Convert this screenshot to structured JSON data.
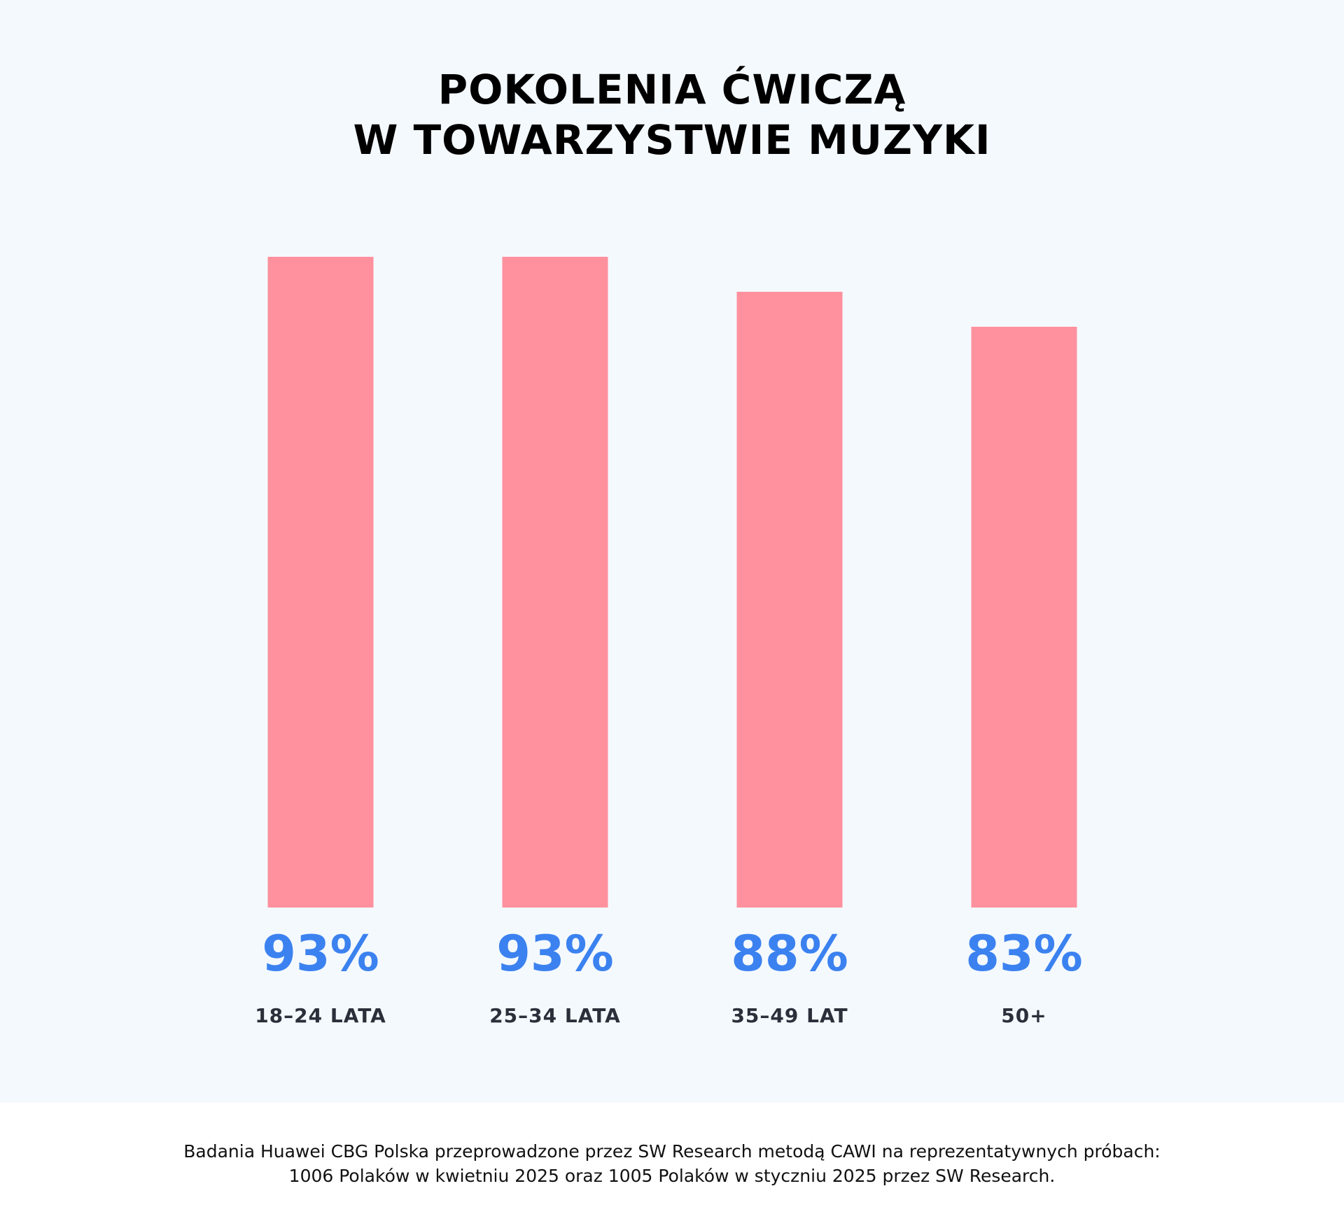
{
  "title": {
    "line1": "POKOLENIA ĆWICZĄ",
    "line2": "W TOWARZYSTWIE MUZYKI"
  },
  "chart_data": {
    "type": "bar",
    "categories": [
      "18–24 LATA",
      "25–34 LATA",
      "35–49 LAT",
      "50+"
    ],
    "values": [
      93,
      93,
      88,
      83
    ],
    "value_labels": [
      "93%",
      "93%",
      "88%",
      "83%"
    ],
    "unit": "%",
    "title": "POKOLENIA ĆWICZĄ W TOWARZYSTWIE MUZYKI",
    "xlabel": "",
    "ylabel": "",
    "ylim": [
      0,
      93
    ],
    "grid": false,
    "legend": "none",
    "colors": {
      "bar": "#ff919e",
      "value_label": "#3b82f0",
      "category_label": "#2b2f3a",
      "background": "#f4f9fe"
    }
  },
  "footer": {
    "line1": "Badania Huawei CBG Polska przeprowadzone przez SW Research metodą CAWI na reprezentatywnych próbach:",
    "line2": "1006 Polaków w kwietniu 2025 oraz 1005 Polaków w styczniu 2025 przez SW Research."
  }
}
